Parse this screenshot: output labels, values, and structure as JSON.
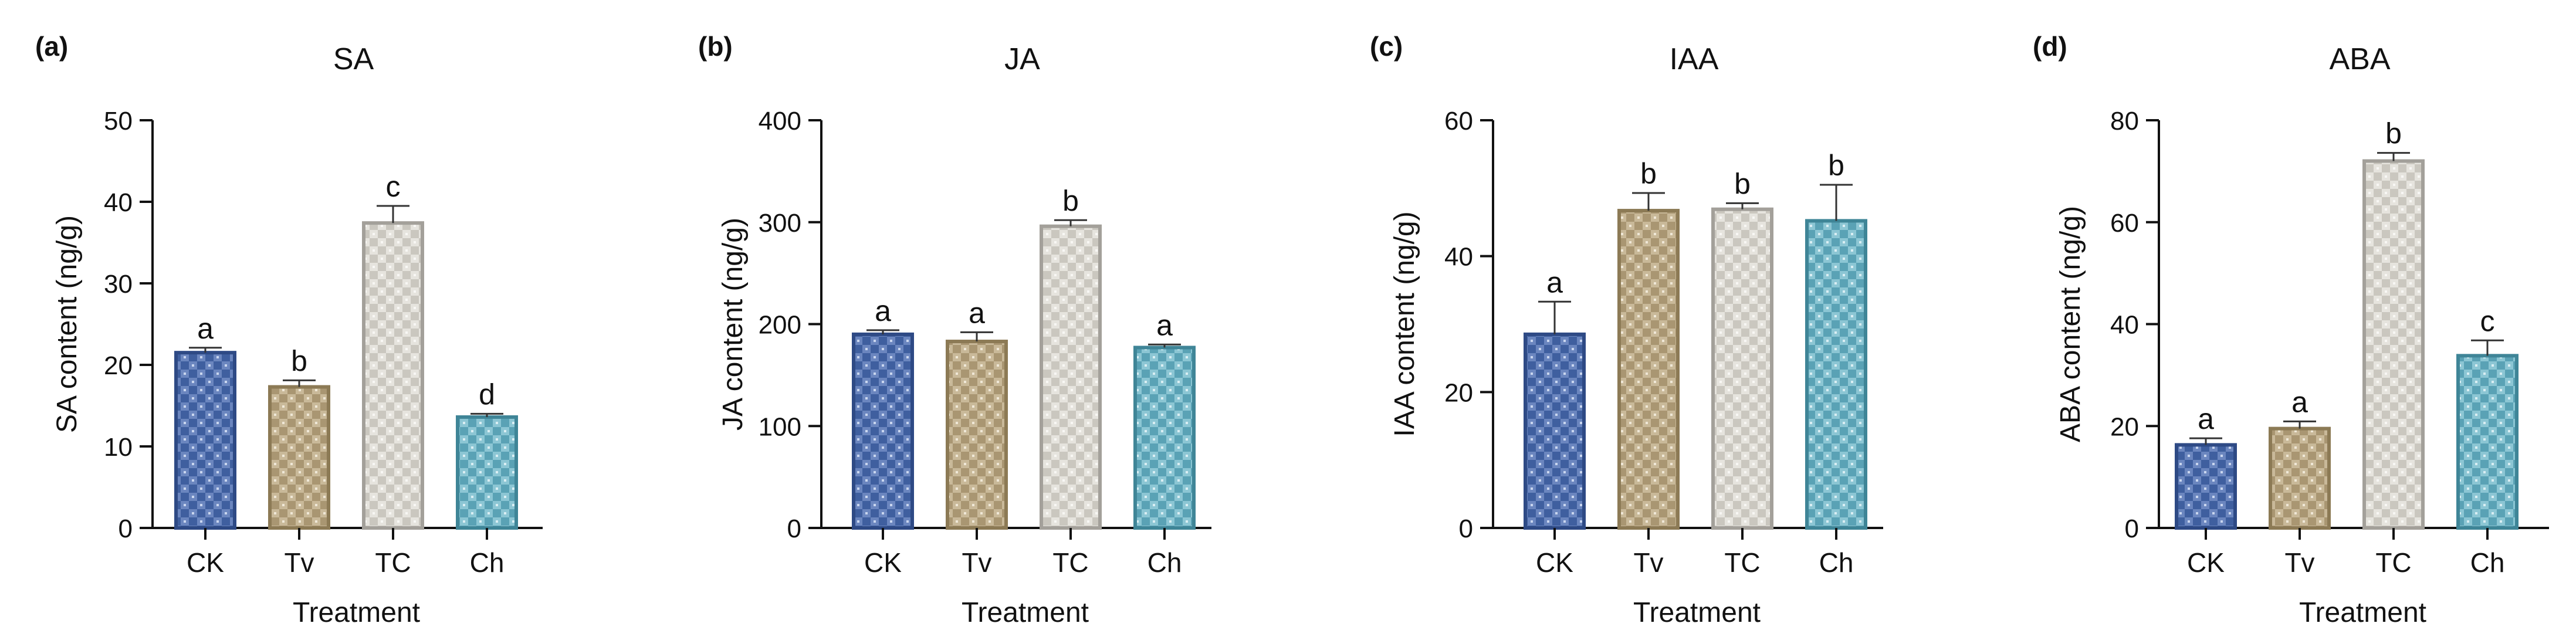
{
  "chart_data": [
    {
      "type": "bar",
      "panel_label": "(a)",
      "title": "SA",
      "xlabel": "Treatment",
      "ylabel": "SA content (ng/g)",
      "categories": [
        "CK",
        "Tv",
        "TC",
        "Ch"
      ],
      "values": [
        21.5,
        17.3,
        37.4,
        13.6
      ],
      "errors": [
        0.6,
        0.8,
        2.1,
        0.4
      ],
      "sig_letters": [
        "a",
        "b",
        "c",
        "d"
      ],
      "ylim": [
        0,
        50
      ],
      "yticks": [
        0,
        10,
        20,
        30,
        40,
        50
      ],
      "grid": false,
      "bar_colors": [
        "#4a6aa8",
        "#b7a683",
        "#d5d3cd",
        "#6aaebf"
      ]
    },
    {
      "type": "bar",
      "panel_label": "(b)",
      "title": "JA",
      "xlabel": "Treatment",
      "ylabel": "JA content (ng/g)",
      "categories": [
        "CK",
        "Tv",
        "TC",
        "Ch"
      ],
      "values": [
        190,
        183,
        296,
        177
      ],
      "errors": [
        4,
        9,
        6,
        3
      ],
      "sig_letters": [
        "a",
        "a",
        "b",
        "a"
      ],
      "ylim": [
        0,
        400
      ],
      "yticks": [
        0,
        100,
        200,
        300,
        400
      ],
      "grid": false,
      "bar_colors": [
        "#4a6aa8",
        "#b7a683",
        "#d5d3cd",
        "#6aaebf"
      ]
    },
    {
      "type": "bar",
      "panel_label": "(c)",
      "title": "IAA",
      "xlabel": "Treatment",
      "ylabel": "IAA content (ng/g)",
      "categories": [
        "CK",
        "Tv",
        "TC",
        "Ch"
      ],
      "values": [
        28.5,
        46.7,
        46.9,
        45.2
      ],
      "errors": [
        4.8,
        2.6,
        0.9,
        5.3
      ],
      "sig_letters": [
        "a",
        "b",
        "b",
        "b"
      ],
      "ylim": [
        0,
        60
      ],
      "yticks": [
        0,
        20,
        40,
        60
      ],
      "grid": false,
      "bar_colors": [
        "#4a6aa8",
        "#b7a683",
        "#d5d3cd",
        "#6aaebf"
      ]
    },
    {
      "type": "bar",
      "panel_label": "(d)",
      "title": "ABA",
      "xlabel": "Treatment",
      "ylabel": "ABA content (ng/g)",
      "categories": [
        "CK",
        "Tv",
        "TC",
        "Ch"
      ],
      "values": [
        16.3,
        19.5,
        72.0,
        33.8
      ],
      "errors": [
        1.3,
        1.4,
        1.6,
        3.0
      ],
      "sig_letters": [
        "a",
        "a",
        "b",
        "c"
      ],
      "ylim": [
        0,
        80
      ],
      "yticks": [
        0,
        20,
        40,
        60,
        80
      ],
      "grid": false,
      "bar_colors": [
        "#4a6aa8",
        "#b7a683",
        "#d5d3cd",
        "#6aaebf"
      ]
    }
  ]
}
